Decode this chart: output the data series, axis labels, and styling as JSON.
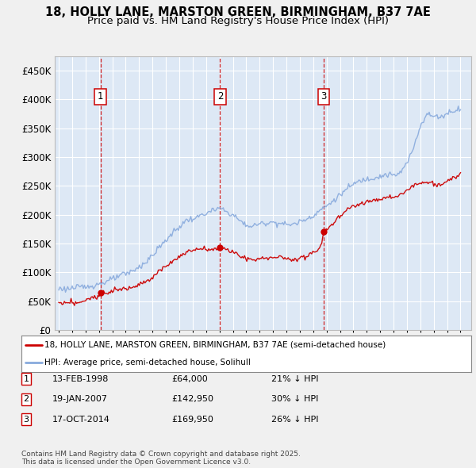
{
  "title_line1": "18, HOLLY LANE, MARSTON GREEN, BIRMINGHAM, B37 7AE",
  "title_line2": "Price paid vs. HM Land Registry's House Price Index (HPI)",
  "xlim": [
    1994.7,
    2025.8
  ],
  "ylim": [
    0,
    475000
  ],
  "yticks": [
    0,
    50000,
    100000,
    150000,
    200000,
    250000,
    300000,
    350000,
    400000,
    450000
  ],
  "ytick_labels": [
    "£0",
    "£50K",
    "£100K",
    "£150K",
    "£200K",
    "£250K",
    "£300K",
    "£350K",
    "£400K",
    "£450K"
  ],
  "transactions": [
    {
      "num": 1,
      "date": "13-FEB-1998",
      "year": 1998.12,
      "price": 64000,
      "pct": "21%"
    },
    {
      "num": 2,
      "date": "19-JAN-2007",
      "year": 2007.05,
      "price": 142950,
      "pct": "30%"
    },
    {
      "num": 3,
      "date": "17-OCT-2014",
      "year": 2014.79,
      "price": 169950,
      "pct": "26%"
    }
  ],
  "legend_label_red": "18, HOLLY LANE, MARSTON GREEN, BIRMINGHAM, B37 7AE (semi-detached house)",
  "legend_label_blue": "HPI: Average price, semi-detached house, Solihull",
  "footer": "Contains HM Land Registry data © Crown copyright and database right 2025.\nThis data is licensed under the Open Government Licence v3.0.",
  "red_color": "#cc0000",
  "blue_color": "#88aadd",
  "bg_color": "#dde8f5",
  "grid_color": "#ffffff",
  "fig_bg": "#f0f0f0",
  "title_fontsize": 10.5,
  "subtitle_fontsize": 9.5,
  "hpi_anchors_x": [
    1995.0,
    1995.5,
    1996.0,
    1996.5,
    1997.0,
    1997.5,
    1998.0,
    1998.5,
    1999.0,
    1999.5,
    2000.0,
    2000.5,
    2001.0,
    2001.5,
    2002.0,
    2002.5,
    2003.0,
    2003.5,
    2004.0,
    2004.5,
    2005.0,
    2005.5,
    2006.0,
    2006.5,
    2007.0,
    2007.5,
    2008.0,
    2008.5,
    2009.0,
    2009.5,
    2010.0,
    2010.5,
    2011.0,
    2011.5,
    2012.0,
    2012.5,
    2013.0,
    2013.5,
    2014.0,
    2014.5,
    2015.0,
    2015.5,
    2016.0,
    2016.5,
    2017.0,
    2017.5,
    2018.0,
    2018.5,
    2019.0,
    2019.5,
    2020.0,
    2020.5,
    2021.0,
    2021.5,
    2022.0,
    2022.5,
    2023.0,
    2023.5,
    2024.0,
    2024.5,
    2025.0
  ],
  "hpi_anchors_v": [
    72000,
    71000,
    73000,
    74000,
    77000,
    79000,
    82000,
    86000,
    91000,
    96000,
    101000,
    107000,
    114000,
    122000,
    133000,
    147000,
    160000,
    172000,
    182000,
    191000,
    196000,
    200000,
    205000,
    210000,
    213000,
    208000,
    202000,
    193000,
    185000,
    183000,
    186000,
    189000,
    191000,
    189000,
    186000,
    186000,
    189000,
    194000,
    200000,
    207000,
    215000,
    224000,
    233000,
    243000,
    252000,
    258000,
    263000,
    265000,
    268000,
    271000,
    270000,
    275000,
    290000,
    318000,
    355000,
    375000,
    372000,
    370000,
    375000,
    380000,
    385000
  ],
  "red_anchors_x": [
    1995.0,
    1995.5,
    1996.0,
    1996.5,
    1997.0,
    1997.5,
    1998.0,
    1998.12,
    1998.5,
    1999.0,
    2000.0,
    2001.0,
    2002.0,
    2002.5,
    2003.0,
    2003.5,
    2004.0,
    2004.5,
    2005.0,
    2005.5,
    2006.0,
    2006.5,
    2007.0,
    2007.05,
    2007.5,
    2008.0,
    2008.5,
    2009.0,
    2009.5,
    2010.0,
    2010.5,
    2011.0,
    2011.5,
    2012.0,
    2012.5,
    2013.0,
    2013.5,
    2014.0,
    2014.5,
    2014.79,
    2015.0,
    2015.5,
    2016.0,
    2016.5,
    2017.0,
    2017.5,
    2018.0,
    2018.5,
    2019.0,
    2019.5,
    2020.0,
    2020.5,
    2021.0,
    2021.5,
    2022.0,
    2022.5,
    2023.0,
    2023.5,
    2024.0,
    2024.5,
    2025.0
  ],
  "red_anchors_v": [
    46000,
    46500,
    47000,
    48000,
    50000,
    54000,
    58000,
    64000,
    66000,
    69000,
    72000,
    78000,
    90000,
    100000,
    110000,
    120000,
    128000,
    134000,
    138000,
    141000,
    140000,
    141000,
    142000,
    142950,
    140000,
    136000,
    131000,
    125000,
    122000,
    124000,
    126000,
    128000,
    127000,
    124000,
    123000,
    126000,
    130000,
    136000,
    144000,
    169950,
    178000,
    186000,
    198000,
    208000,
    215000,
    220000,
    224000,
    227000,
    230000,
    232000,
    232000,
    236000,
    244000,
    254000,
    258000,
    258000,
    255000,
    252000,
    258000,
    265000,
    270000
  ]
}
